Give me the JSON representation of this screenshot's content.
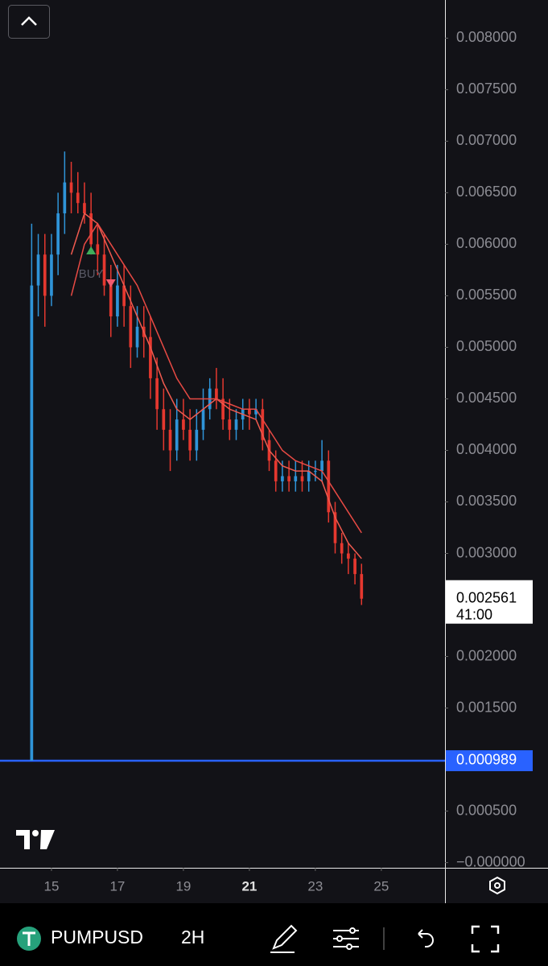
{
  "chart_data": {
    "type": "candlestick",
    "x": [
      14.4,
      14.6,
      14.8,
      15.0,
      15.2,
      15.4,
      15.6,
      15.8,
      16.0,
      16.2,
      16.4,
      16.6,
      16.8,
      17.0,
      17.2,
      17.4,
      17.6,
      17.8,
      18.0,
      18.2,
      18.4,
      18.6,
      18.8,
      19.0,
      19.2,
      19.4,
      19.6,
      19.8,
      20.0,
      20.2,
      20.4,
      20.6,
      20.8,
      21.0,
      21.2,
      21.4,
      21.6,
      21.8,
      22.0,
      22.2,
      22.4,
      22.6,
      22.8,
      23.0,
      23.2,
      23.4,
      23.6,
      23.8,
      24.0,
      24.2,
      24.4
    ],
    "open": [
      0.000989,
      0.0056,
      0.0059,
      0.0055,
      0.0059,
      0.0063,
      0.0066,
      0.0065,
      0.0064,
      0.0063,
      0.006,
      0.0059,
      0.0056,
      0.0053,
      0.0056,
      0.0054,
      0.005,
      0.0052,
      0.0051,
      0.0047,
      0.0044,
      0.0042,
      0.004,
      0.0043,
      0.0042,
      0.004,
      0.0042,
      0.0044,
      0.0046,
      0.0045,
      0.0043,
      0.0042,
      0.0043,
      0.0044,
      0.00435,
      0.0044,
      0.0041,
      0.0039,
      0.0037,
      0.00375,
      0.0037,
      0.00375,
      0.0037,
      0.0038,
      0.0038,
      0.0039,
      0.0034,
      0.0031,
      0.003,
      0.00295,
      0.0028
    ],
    "close": [
      0.0056,
      0.0059,
      0.0055,
      0.0059,
      0.0063,
      0.0066,
      0.0065,
      0.0064,
      0.0063,
      0.006,
      0.0059,
      0.0056,
      0.0053,
      0.0056,
      0.0054,
      0.005,
      0.0052,
      0.0051,
      0.0047,
      0.0044,
      0.0042,
      0.004,
      0.0043,
      0.0042,
      0.004,
      0.0042,
      0.0044,
      0.0046,
      0.0045,
      0.0043,
      0.0042,
      0.0043,
      0.0044,
      0.00435,
      0.0044,
      0.0041,
      0.0039,
      0.0037,
      0.00375,
      0.0037,
      0.00375,
      0.0037,
      0.0038,
      0.0038,
      0.0039,
      0.0034,
      0.0031,
      0.003,
      0.00295,
      0.0028,
      0.002561
    ],
    "high": [
      0.0062,
      0.0061,
      0.0061,
      0.0061,
      0.0065,
      0.0069,
      0.0068,
      0.0067,
      0.0066,
      0.0065,
      0.0062,
      0.0061,
      0.0058,
      0.0058,
      0.0058,
      0.0056,
      0.0054,
      0.0054,
      0.0053,
      0.0049,
      0.0046,
      0.0044,
      0.0045,
      0.0045,
      0.0044,
      0.0044,
      0.0046,
      0.0047,
      0.0048,
      0.0047,
      0.0045,
      0.0044,
      0.0045,
      0.0045,
      0.0045,
      0.0045,
      0.0042,
      0.004,
      0.0039,
      0.0039,
      0.0039,
      0.0039,
      0.0039,
      0.0039,
      0.0041,
      0.004,
      0.0035,
      0.0032,
      0.0031,
      0.003,
      0.0029
    ],
    "low": [
      0.000989,
      0.0053,
      0.0052,
      0.0054,
      0.0057,
      0.0061,
      0.0063,
      0.0063,
      0.0062,
      0.0059,
      0.0057,
      0.0055,
      0.0051,
      0.0052,
      0.0052,
      0.0048,
      0.0049,
      0.0049,
      0.0045,
      0.0042,
      0.004,
      0.0038,
      0.0039,
      0.0041,
      0.0039,
      0.0039,
      0.0041,
      0.0043,
      0.0044,
      0.0042,
      0.0041,
      0.0041,
      0.0042,
      0.0042,
      0.0043,
      0.004,
      0.0038,
      0.0036,
      0.0036,
      0.0036,
      0.0036,
      0.0036,
      0.0036,
      0.0037,
      0.0037,
      0.0033,
      0.003,
      0.0029,
      0.0028,
      0.0027,
      0.0025
    ],
    "up_color": "#2f94d8",
    "down_color": "#e5382f",
    "lines": [
      {
        "color": "#f05a4f",
        "x": [
          15.6,
          16.0,
          16.4,
          16.8,
          17.2,
          17.6,
          18.0,
          18.4,
          18.8,
          19.2,
          19.6,
          20.0,
          20.4,
          20.8,
          21.2,
          21.6,
          22.0,
          22.4,
          22.8,
          23.2,
          23.6,
          24.0,
          24.4
        ],
        "values": [
          0.0059,
          0.0063,
          0.0062,
          0.0059,
          0.0056,
          0.0053,
          0.005,
          0.00465,
          0.0044,
          0.0043,
          0.0044,
          0.0045,
          0.0044,
          0.00435,
          0.0043,
          0.004,
          0.00385,
          0.0038,
          0.0038,
          0.0037,
          0.00335,
          0.0031,
          0.00295
        ]
      },
      {
        "color": "#e84a44",
        "x": [
          15.6,
          16.0,
          16.4,
          16.8,
          17.2,
          17.6,
          18.0,
          18.4,
          18.8,
          19.2,
          19.6,
          20.0,
          20.4,
          20.8,
          21.2,
          21.6,
          22.0,
          22.4,
          22.8,
          23.2,
          23.6,
          24.0,
          24.4
        ],
        "values": [
          0.0055,
          0.006,
          0.0062,
          0.006,
          0.0058,
          0.0056,
          0.0053,
          0.005,
          0.0047,
          0.0045,
          0.0045,
          0.0045,
          0.00445,
          0.0044,
          0.0044,
          0.0042,
          0.004,
          0.0039,
          0.00385,
          0.0038,
          0.0036,
          0.0034,
          0.0032
        ]
      }
    ],
    "annotation": "BUY",
    "xlim": [
      13.44,
      26.93
    ],
    "ylim": [
      -5e-05,
      0.00837
    ],
    "xticks": [
      15,
      17,
      19,
      21,
      23,
      25
    ],
    "bold_xtick": 21,
    "yticks": [
      {
        "value": 0.008,
        "label": "0.008000"
      },
      {
        "value": 0.0075,
        "label": "0.007500"
      },
      {
        "value": 0.007,
        "label": "0.007000"
      },
      {
        "value": 0.0065,
        "label": "0.006500"
      },
      {
        "value": 0.006,
        "label": "0.006000"
      },
      {
        "value": 0.0055,
        "label": "0.005500"
      },
      {
        "value": 0.005,
        "label": "0.005000"
      },
      {
        "value": 0.0045,
        "label": "0.004500"
      },
      {
        "value": 0.004,
        "label": "0.004000"
      },
      {
        "value": 0.0035,
        "label": "0.003500"
      },
      {
        "value": 0.003,
        "label": "0.003000"
      },
      {
        "value": 0.002,
        "label": "0.002000"
      },
      {
        "value": 0.0015,
        "label": "0.001500"
      },
      {
        "value": 0.0005,
        "label": "0.000500"
      },
      {
        "value": 0,
        "label": "−0.000000"
      }
    ],
    "last_price": {
      "value": 0.002561,
      "label": "0.002561",
      "countdown": "41:00"
    },
    "level": {
      "value": 0.000989,
      "label": "0.000989",
      "color": "#2962ff"
    }
  },
  "toolbar": {
    "symbol": "PUMPUSD",
    "interval": "2H"
  }
}
